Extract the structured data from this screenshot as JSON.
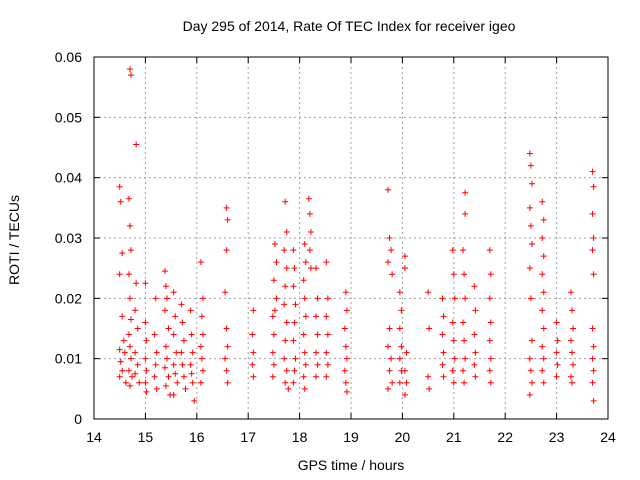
{
  "chart_data": {
    "type": "scatter",
    "title": "Day 295 of 2014, Rate Of TEC Index for receiver igeo",
    "xlabel": "GPS time / hours",
    "ylabel": "ROTI / TECUs",
    "xlim": [
      14,
      24
    ],
    "ylim": [
      0,
      0.06
    ],
    "xticks": [
      "14",
      "15",
      "16",
      "17",
      "18",
      "19",
      "20",
      "21",
      "22",
      "23",
      "24"
    ],
    "yticks": [
      "0",
      "0.01",
      "0.02",
      "0.03",
      "0.04",
      "0.05",
      "0.06"
    ],
    "grid": true,
    "marker": "+",
    "marker_color": "#ff0000",
    "series": [
      {
        "name": "ROTI",
        "points": [
          [
            14.5,
            0.0385
          ],
          [
            14.52,
            0.036
          ],
          [
            14.55,
            0.0275
          ],
          [
            14.5,
            0.024
          ],
          [
            14.55,
            0.017
          ],
          [
            14.5,
            0.0115
          ],
          [
            14.52,
            0.0095
          ],
          [
            14.55,
            0.008
          ],
          [
            14.5,
            0.007
          ],
          [
            14.58,
            0.013
          ],
          [
            14.6,
            0.011
          ],
          [
            14.62,
            0.006
          ],
          [
            14.68,
            0.0365
          ],
          [
            14.7,
            0.032
          ],
          [
            14.72,
            0.028
          ],
          [
            14.68,
            0.024
          ],
          [
            14.7,
            0.02
          ],
          [
            14.72,
            0.0165
          ],
          [
            14.68,
            0.014
          ],
          [
            14.7,
            0.012
          ],
          [
            14.72,
            0.01
          ],
          [
            14.68,
            0.008
          ],
          [
            14.74,
            0.007
          ],
          [
            14.7,
            0.0055
          ],
          [
            14.7,
            0.058
          ],
          [
            14.72,
            0.057
          ],
          [
            14.82,
            0.0455
          ],
          [
            14.82,
            0.0225
          ],
          [
            14.8,
            0.018
          ],
          [
            14.85,
            0.015
          ],
          [
            14.8,
            0.011
          ],
          [
            14.85,
            0.009
          ],
          [
            14.8,
            0.0075
          ],
          [
            14.88,
            0.006
          ],
          [
            15.0,
            0.0225
          ],
          [
            15.0,
            0.016
          ],
          [
            15.02,
            0.013
          ],
          [
            15.0,
            0.01
          ],
          [
            15.02,
            0.008
          ],
          [
            15.0,
            0.006
          ],
          [
            15.02,
            0.0045
          ],
          [
            15.2,
            0.02
          ],
          [
            15.18,
            0.014
          ],
          [
            15.22,
            0.011
          ],
          [
            15.2,
            0.009
          ],
          [
            15.18,
            0.007
          ],
          [
            15.22,
            0.005
          ],
          [
            15.38,
            0.0245
          ],
          [
            15.4,
            0.022
          ],
          [
            15.42,
            0.02
          ],
          [
            15.38,
            0.018
          ],
          [
            15.45,
            0.015
          ],
          [
            15.4,
            0.012
          ],
          [
            15.42,
            0.01
          ],
          [
            15.38,
            0.0085
          ],
          [
            15.45,
            0.007
          ],
          [
            15.4,
            0.0055
          ],
          [
            15.48,
            0.004
          ],
          [
            15.55,
            0.021
          ],
          [
            15.58,
            0.017
          ],
          [
            15.55,
            0.014
          ],
          [
            15.6,
            0.011
          ],
          [
            15.55,
            0.009
          ],
          [
            15.58,
            0.0075
          ],
          [
            15.62,
            0.006
          ],
          [
            15.55,
            0.004
          ],
          [
            15.7,
            0.019
          ],
          [
            15.72,
            0.016
          ],
          [
            15.75,
            0.013
          ],
          [
            15.7,
            0.011
          ],
          [
            15.72,
            0.009
          ],
          [
            15.75,
            0.007
          ],
          [
            15.78,
            0.005
          ],
          [
            15.88,
            0.018
          ],
          [
            15.9,
            0.014
          ],
          [
            15.92,
            0.011
          ],
          [
            15.88,
            0.009
          ],
          [
            15.9,
            0.0075
          ],
          [
            15.92,
            0.006
          ],
          [
            15.95,
            0.003
          ],
          [
            16.08,
            0.026
          ],
          [
            16.12,
            0.02
          ],
          [
            16.1,
            0.017
          ],
          [
            16.12,
            0.014
          ],
          [
            16.08,
            0.012
          ],
          [
            16.1,
            0.01
          ],
          [
            16.12,
            0.008
          ],
          [
            16.08,
            0.006
          ],
          [
            16.58,
            0.035
          ],
          [
            16.6,
            0.033
          ],
          [
            16.58,
            0.028
          ],
          [
            16.55,
            0.021
          ],
          [
            16.58,
            0.015
          ],
          [
            16.6,
            0.012
          ],
          [
            16.55,
            0.01
          ],
          [
            16.58,
            0.008
          ],
          [
            16.6,
            0.006
          ],
          [
            17.1,
            0.018
          ],
          [
            17.08,
            0.014
          ],
          [
            17.1,
            0.011
          ],
          [
            17.08,
            0.009
          ],
          [
            17.1,
            0.007
          ],
          [
            17.48,
            0.017
          ],
          [
            17.5,
            0.014
          ],
          [
            17.48,
            0.011
          ],
          [
            17.5,
            0.009
          ],
          [
            17.48,
            0.007
          ],
          [
            17.52,
            0.029
          ],
          [
            17.55,
            0.026
          ],
          [
            17.5,
            0.023
          ],
          [
            17.55,
            0.02
          ],
          [
            17.52,
            0.018
          ],
          [
            17.72,
            0.036
          ],
          [
            17.75,
            0.031
          ],
          [
            17.7,
            0.028
          ],
          [
            17.75,
            0.025
          ],
          [
            17.72,
            0.022
          ],
          [
            17.7,
            0.019
          ],
          [
            17.75,
            0.016
          ],
          [
            17.72,
            0.013
          ],
          [
            17.7,
            0.01
          ],
          [
            17.75,
            0.008
          ],
          [
            17.72,
            0.006
          ],
          [
            17.78,
            0.005
          ],
          [
            17.88,
            0.028
          ],
          [
            17.9,
            0.025
          ],
          [
            17.88,
            0.022
          ],
          [
            17.92,
            0.019
          ],
          [
            17.9,
            0.016
          ],
          [
            17.88,
            0.013
          ],
          [
            17.92,
            0.01
          ],
          [
            17.9,
            0.008
          ],
          [
            17.88,
            0.006
          ],
          [
            18.1,
            0.029
          ],
          [
            18.12,
            0.026
          ],
          [
            18.08,
            0.023
          ],
          [
            18.1,
            0.02
          ],
          [
            18.12,
            0.017
          ],
          [
            18.08,
            0.014
          ],
          [
            18.1,
            0.011
          ],
          [
            18.12,
            0.009
          ],
          [
            18.08,
            0.007
          ],
          [
            18.1,
            0.005
          ],
          [
            18.18,
            0.0365
          ],
          [
            18.2,
            0.034
          ],
          [
            18.22,
            0.031
          ],
          [
            18.2,
            0.028
          ],
          [
            18.22,
            0.025
          ],
          [
            18.32,
            0.025
          ],
          [
            18.35,
            0.02
          ],
          [
            18.32,
            0.017
          ],
          [
            18.35,
            0.014
          ],
          [
            18.32,
            0.011
          ],
          [
            18.35,
            0.009
          ],
          [
            18.32,
            0.007
          ],
          [
            18.52,
            0.026
          ],
          [
            18.55,
            0.02
          ],
          [
            18.52,
            0.017
          ],
          [
            18.55,
            0.014
          ],
          [
            18.52,
            0.011
          ],
          [
            18.55,
            0.009
          ],
          [
            18.52,
            0.007
          ],
          [
            18.9,
            0.021
          ],
          [
            18.92,
            0.018
          ],
          [
            18.88,
            0.015
          ],
          [
            18.9,
            0.012
          ],
          [
            18.92,
            0.01
          ],
          [
            18.88,
            0.008
          ],
          [
            18.9,
            0.006
          ],
          [
            18.92,
            0.0045
          ],
          [
            19.72,
            0.038
          ],
          [
            19.75,
            0.03
          ],
          [
            19.78,
            0.028
          ],
          [
            19.72,
            0.026
          ],
          [
            19.8,
            0.024
          ],
          [
            19.75,
            0.015
          ],
          [
            19.72,
            0.012
          ],
          [
            19.78,
            0.01
          ],
          [
            19.75,
            0.008
          ],
          [
            19.8,
            0.006
          ],
          [
            19.72,
            0.005
          ],
          [
            19.95,
            0.021
          ],
          [
            19.98,
            0.018
          ],
          [
            19.95,
            0.015
          ],
          [
            19.98,
            0.012
          ],
          [
            19.95,
            0.01
          ],
          [
            19.98,
            0.008
          ],
          [
            19.95,
            0.006
          ],
          [
            20.05,
            0.027
          ],
          [
            20.05,
            0.025
          ],
          [
            20.08,
            0.011
          ],
          [
            20.05,
            0.008
          ],
          [
            20.08,
            0.006
          ],
          [
            20.05,
            0.004
          ],
          [
            20.5,
            0.021
          ],
          [
            20.52,
            0.015
          ],
          [
            20.5,
            0.007
          ],
          [
            20.52,
            0.005
          ],
          [
            20.78,
            0.02
          ],
          [
            20.8,
            0.017
          ],
          [
            20.78,
            0.014
          ],
          [
            20.8,
            0.011
          ],
          [
            20.78,
            0.009
          ],
          [
            20.8,
            0.007
          ],
          [
            20.98,
            0.028
          ],
          [
            21.0,
            0.024
          ],
          [
            21.02,
            0.02
          ],
          [
            20.98,
            0.016
          ],
          [
            21.0,
            0.013
          ],
          [
            21.02,
            0.01
          ],
          [
            20.98,
            0.008
          ],
          [
            21.0,
            0.006
          ],
          [
            21.18,
            0.028
          ],
          [
            21.2,
            0.024
          ],
          [
            21.22,
            0.02
          ],
          [
            21.18,
            0.016
          ],
          [
            21.2,
            0.013
          ],
          [
            21.22,
            0.01
          ],
          [
            21.18,
            0.008
          ],
          [
            21.2,
            0.006
          ],
          [
            21.22,
            0.0375
          ],
          [
            21.22,
            0.034
          ],
          [
            21.4,
            0.022
          ],
          [
            21.42,
            0.018
          ],
          [
            21.4,
            0.014
          ],
          [
            21.42,
            0.011
          ],
          [
            21.4,
            0.009
          ],
          [
            21.42,
            0.007
          ],
          [
            21.7,
            0.028
          ],
          [
            21.72,
            0.024
          ],
          [
            21.7,
            0.02
          ],
          [
            21.72,
            0.016
          ],
          [
            21.7,
            0.013
          ],
          [
            21.72,
            0.01
          ],
          [
            21.7,
            0.008
          ],
          [
            21.72,
            0.006
          ],
          [
            22.48,
            0.044
          ],
          [
            22.5,
            0.042
          ],
          [
            22.52,
            0.039
          ],
          [
            22.48,
            0.035
          ],
          [
            22.5,
            0.032
          ],
          [
            22.52,
            0.029
          ],
          [
            22.48,
            0.025
          ],
          [
            22.5,
            0.02
          ],
          [
            22.52,
            0.013
          ],
          [
            22.48,
            0.01
          ],
          [
            22.5,
            0.008
          ],
          [
            22.52,
            0.006
          ],
          [
            22.48,
            0.004
          ],
          [
            22.72,
            0.036
          ],
          [
            22.75,
            0.033
          ],
          [
            22.72,
            0.03
          ],
          [
            22.75,
            0.027
          ],
          [
            22.72,
            0.024
          ],
          [
            22.75,
            0.021
          ],
          [
            22.72,
            0.018
          ],
          [
            22.75,
            0.015
          ],
          [
            22.72,
            0.012
          ],
          [
            22.75,
            0.01
          ],
          [
            22.72,
            0.008
          ],
          [
            22.75,
            0.006
          ],
          [
            23.0,
            0.016
          ],
          [
            23.02,
            0.013
          ],
          [
            23.0,
            0.011
          ],
          [
            23.02,
            0.009
          ],
          [
            23.0,
            0.007
          ],
          [
            23.28,
            0.021
          ],
          [
            23.3,
            0.018
          ],
          [
            23.32,
            0.015
          ],
          [
            23.28,
            0.013
          ],
          [
            23.3,
            0.011
          ],
          [
            23.32,
            0.009
          ],
          [
            23.28,
            0.007
          ],
          [
            23.3,
            0.006
          ],
          [
            23.7,
            0.041
          ],
          [
            23.72,
            0.0385
          ],
          [
            23.7,
            0.034
          ],
          [
            23.72,
            0.03
          ],
          [
            23.7,
            0.028
          ],
          [
            23.72,
            0.024
          ],
          [
            23.7,
            0.015
          ],
          [
            23.72,
            0.012
          ],
          [
            23.7,
            0.01
          ],
          [
            23.72,
            0.008
          ],
          [
            23.7,
            0.006
          ],
          [
            23.72,
            0.003
          ]
        ]
      }
    ]
  }
}
